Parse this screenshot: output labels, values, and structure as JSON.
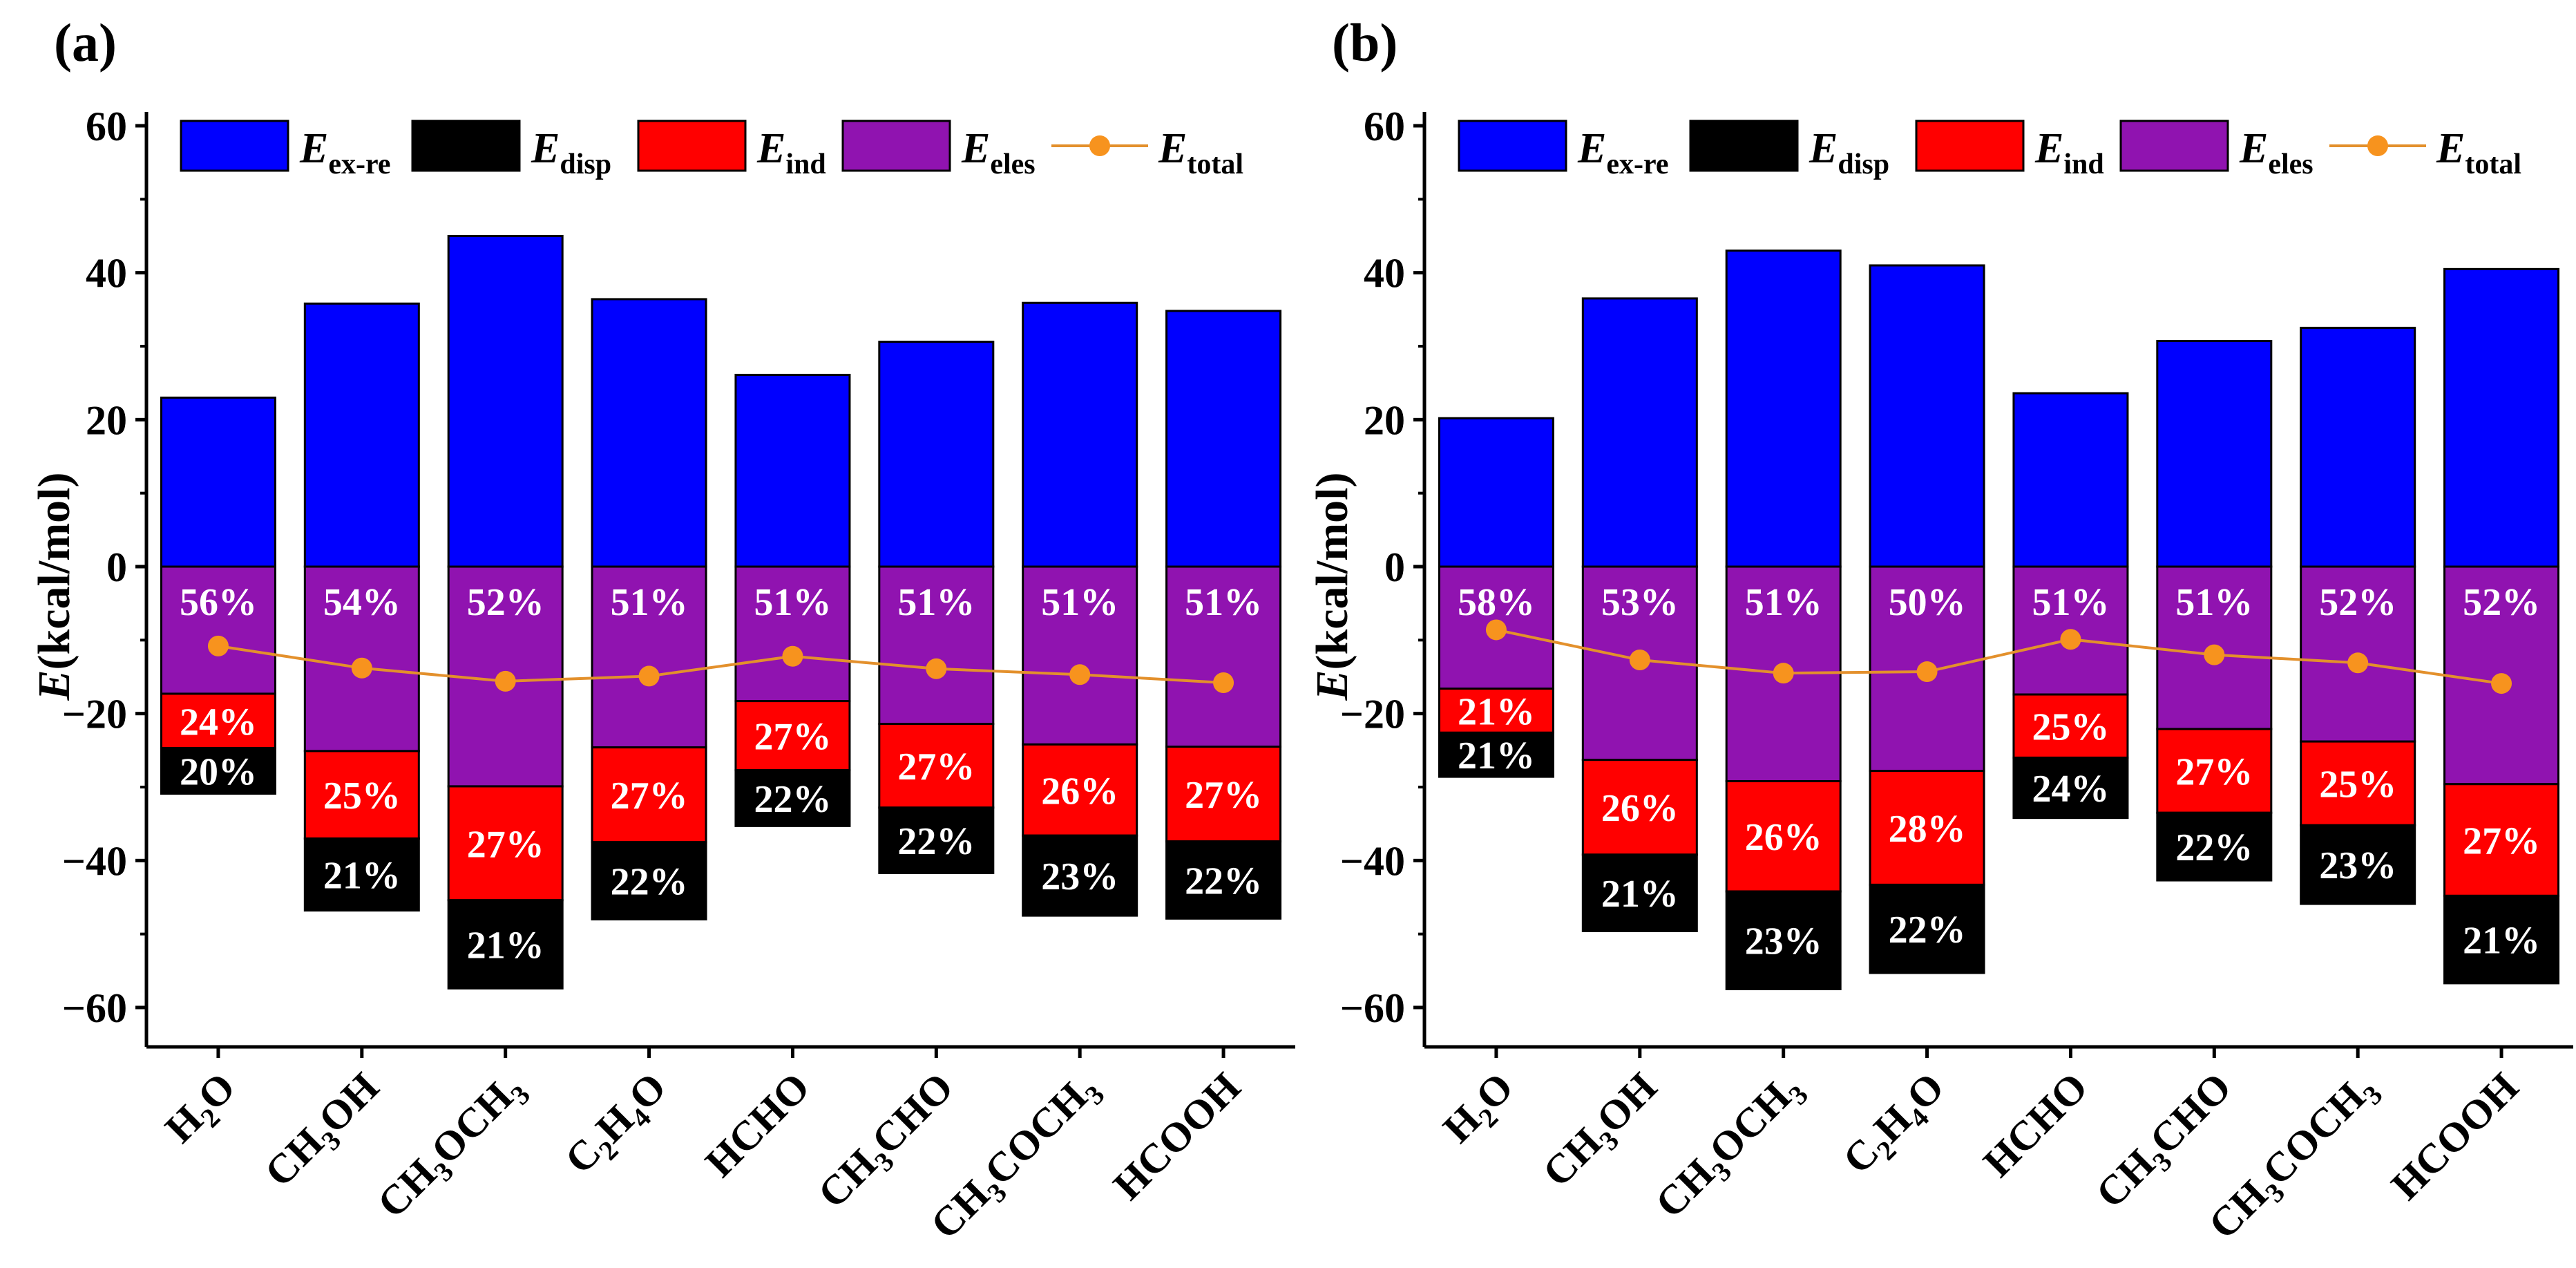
{
  "colors": {
    "ex_re": "#0000ff",
    "disp": "#000000",
    "ind": "#ff0000",
    "eles": "#9013b0",
    "total": "#f7931e",
    "total_line": "#e3902c"
  },
  "legend": [
    {
      "key": "ex_re",
      "main": "E",
      "sub": "ex-re",
      "kind": "bar"
    },
    {
      "key": "disp",
      "main": "E",
      "sub": "disp",
      "kind": "bar"
    },
    {
      "key": "ind",
      "main": "E",
      "sub": "ind",
      "kind": "bar"
    },
    {
      "key": "eles",
      "main": "E",
      "sub": "eles",
      "kind": "bar"
    },
    {
      "key": "total",
      "main": "E",
      "sub": "total",
      "kind": "line"
    }
  ],
  "chart_data": [
    {
      "type": "bar",
      "stacked": true,
      "panel_label": "(a)",
      "ylabel": "E(kcal/mol)",
      "ylabel_italic_part": "E",
      "ylabel_rest": "(kcal/mol)",
      "ylim": [
        -65,
        60
      ],
      "yticks": [
        60,
        40,
        20,
        0,
        -20,
        -40,
        -60
      ],
      "ytick_labels": [
        "60",
        "40",
        "20",
        "0",
        "−20",
        "−40",
        "−60"
      ],
      "categories": [
        [
          {
            "t": "H"
          },
          {
            "t": "2",
            "sub": true
          },
          {
            "t": "O"
          }
        ],
        [
          {
            "t": "CH"
          },
          {
            "t": "3",
            "sub": true
          },
          {
            "t": "OH"
          }
        ],
        [
          {
            "t": "CH"
          },
          {
            "t": "3",
            "sub": true
          },
          {
            "t": "OCH"
          },
          {
            "t": "3",
            "sub": true
          }
        ],
        [
          {
            "t": "C"
          },
          {
            "t": "2",
            "sub": true
          },
          {
            "t": "H"
          },
          {
            "t": "4",
            "sub": true
          },
          {
            "t": "O"
          }
        ],
        [
          {
            "t": "HCHO"
          }
        ],
        [
          {
            "t": "CH"
          },
          {
            "t": "3",
            "sub": true
          },
          {
            "t": "CHO"
          }
        ],
        [
          {
            "t": "CH"
          },
          {
            "t": "3",
            "sub": true
          },
          {
            "t": "COCH"
          },
          {
            "t": "3",
            "sub": true
          }
        ],
        [
          {
            "t": "HCOOH"
          }
        ]
      ],
      "series": [
        {
          "name": "E_ex-re",
          "key": "ex_re",
          "values": [
            23.0,
            35.8,
            45.0,
            36.4,
            26.1,
            30.6,
            35.9,
            34.8
          ]
        },
        {
          "name": "E_eles",
          "key": "eles",
          "values": [
            -17.3,
            -25.1,
            -29.9,
            -24.6,
            -18.3,
            -21.4,
            -24.2,
            -24.5
          ]
        },
        {
          "name": "E_ind",
          "key": "ind",
          "values": [
            -7.4,
            -11.9,
            -15.5,
            -12.9,
            -9.4,
            -11.4,
            -12.4,
            -12.9
          ]
        },
        {
          "name": "E_disp",
          "key": "disp",
          "values": [
            -6.2,
            -9.8,
            -12.0,
            -10.5,
            -7.6,
            -8.9,
            -10.9,
            -10.5
          ]
        }
      ],
      "total": [
        -10.8,
        -13.8,
        -15.6,
        -14.9,
        -12.2,
        -13.9,
        -14.7,
        -15.8
      ],
      "percent_labels": {
        "eles": [
          "56%",
          "54%",
          "52%",
          "51%",
          "51%",
          "51%",
          "51%",
          "51%"
        ],
        "ind": [
          "24%",
          "25%",
          "27%",
          "27%",
          "27%",
          "27%",
          "26%",
          "27%"
        ],
        "disp": [
          "20%",
          "21%",
          "21%",
          "22%",
          "22%",
          "22%",
          "23%",
          "22%"
        ]
      }
    },
    {
      "type": "bar",
      "stacked": true,
      "panel_label": "(b)",
      "ylabel": "E(kcal/mol)",
      "ylabel_italic_part": "E",
      "ylabel_rest": "(kcal/mol)",
      "ylim": [
        -65,
        60
      ],
      "yticks": [
        60,
        40,
        20,
        0,
        -20,
        -40,
        -60
      ],
      "ytick_labels": [
        "60",
        "40",
        "20",
        "0",
        "−20",
        "−40",
        "−60"
      ],
      "categories": [
        [
          {
            "t": "H"
          },
          {
            "t": "2",
            "sub": true
          },
          {
            "t": "O"
          }
        ],
        [
          {
            "t": "CH"
          },
          {
            "t": "3",
            "sub": true
          },
          {
            "t": "OH"
          }
        ],
        [
          {
            "t": "CH"
          },
          {
            "t": "3",
            "sub": true
          },
          {
            "t": "OCH"
          },
          {
            "t": "3",
            "sub": true
          }
        ],
        [
          {
            "t": "C"
          },
          {
            "t": "2",
            "sub": true
          },
          {
            "t": "H"
          },
          {
            "t": "4",
            "sub": true
          },
          {
            "t": "O"
          }
        ],
        [
          {
            "t": "HCHO"
          }
        ],
        [
          {
            "t": "CH"
          },
          {
            "t": "3",
            "sub": true
          },
          {
            "t": "CHO"
          }
        ],
        [
          {
            "t": "CH"
          },
          {
            "t": "3",
            "sub": true
          },
          {
            "t": "COCH"
          },
          {
            "t": "3",
            "sub": true
          }
        ],
        [
          {
            "t": "HCOOH"
          }
        ]
      ],
      "series": [
        {
          "name": "E_ex-re",
          "key": "ex_re",
          "values": [
            20.2,
            36.5,
            43.0,
            41.0,
            23.6,
            30.7,
            32.5,
            40.5
          ]
        },
        {
          "name": "E_eles",
          "key": "eles",
          "values": [
            -16.6,
            -26.3,
            -29.2,
            -27.8,
            -17.4,
            -22.1,
            -23.8,
            -29.6
          ]
        },
        {
          "name": "E_ind",
          "key": "ind",
          "values": [
            -6.0,
            -12.9,
            -15.0,
            -15.5,
            -8.6,
            -11.4,
            -11.4,
            -15.2
          ]
        },
        {
          "name": "E_disp",
          "key": "disp",
          "values": [
            -6.0,
            -10.4,
            -13.3,
            -12.0,
            -8.2,
            -9.2,
            -10.7,
            -11.9
          ]
        }
      ],
      "total": [
        -8.6,
        -12.7,
        -14.5,
        -14.3,
        -9.9,
        -12.0,
        -13.1,
        -15.9
      ],
      "percent_labels": {
        "eles": [
          "58%",
          "53%",
          "51%",
          "50%",
          "51%",
          "51%",
          "52%",
          "52%"
        ],
        "ind": [
          "21%",
          "26%",
          "26%",
          "28%",
          "25%",
          "27%",
          "25%",
          "27%"
        ],
        "disp": [
          "21%",
          "21%",
          "23%",
          "22%",
          "24%",
          "22%",
          "23%",
          "21%"
        ]
      }
    }
  ]
}
